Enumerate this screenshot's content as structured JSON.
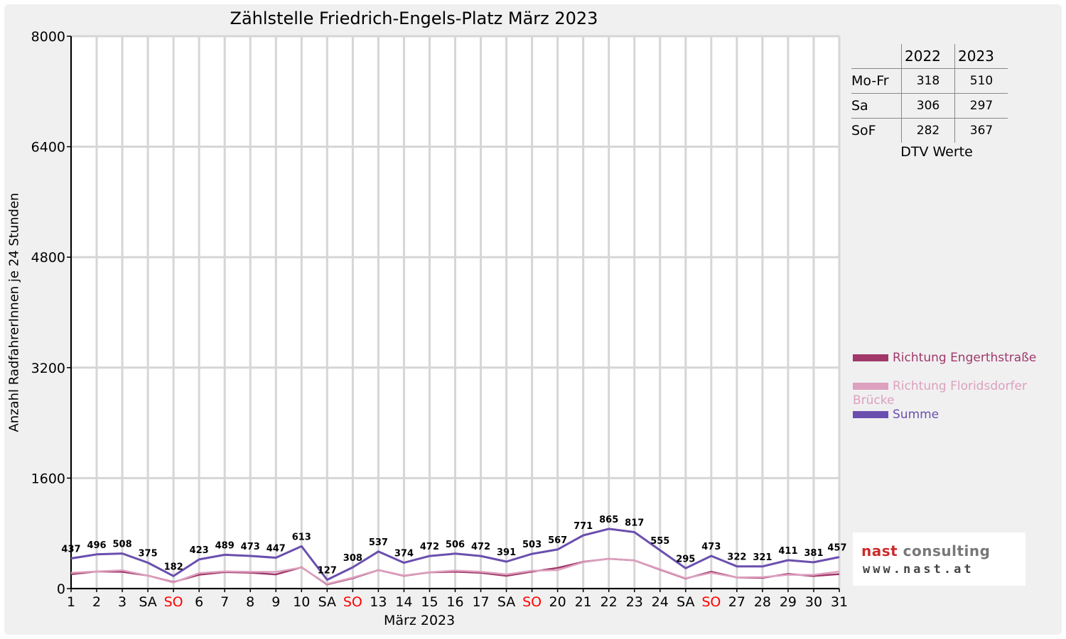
{
  "chart_data": {
    "type": "line",
    "title": "Zählstelle Friedrich-Engels-Platz März 2023",
    "xlabel": "März 2023",
    "ylabel": "Anzahl RadfahrerInnen je 24 Stunden",
    "ylim": [
      0,
      8000
    ],
    "yticks": [
      "0",
      "1600",
      "3200",
      "4800",
      "6400",
      "8000"
    ],
    "grid": true,
    "legend_position": "right",
    "x": [
      "1",
      "2",
      "3",
      "SA",
      "SO",
      "6",
      "7",
      "8",
      "9",
      "10",
      "SA",
      "SO",
      "13",
      "14",
      "15",
      "16",
      "17",
      "SA",
      "SO",
      "20",
      "21",
      "22",
      "23",
      "24",
      "SA",
      "SO",
      "27",
      "28",
      "29",
      "30",
      "31"
    ],
    "weekend_label_colors": {
      "SA": "#000000",
      "SO": "#ff0000"
    },
    "series": [
      {
        "name": "Richtung Engerthstraße",
        "color": "#a0386a",
        "values": [
          208,
          248,
          243,
          188,
          95,
          200,
          240,
          230,
          205,
          308,
          60,
          150,
          268,
          185,
          235,
          245,
          228,
          185,
          245,
          300,
          388,
          432,
          408,
          275,
          145,
          245,
          160,
          155,
          212,
          182,
          210
        ]
      },
      {
        "name": "Richtung Floridsdorfer Brücke",
        "color": "#dda0be",
        "values": [
          229,
          248,
          265,
          187,
          87,
          223,
          249,
          243,
          242,
          305,
          67,
          158,
          269,
          189,
          237,
          261,
          244,
          206,
          258,
          267,
          383,
          433,
          409,
          280,
          150,
          228,
          162,
          166,
          199,
          199,
          247
        ]
      },
      {
        "name": "Summe",
        "color": "#6a4fae",
        "values": [
          437,
          496,
          508,
          375,
          182,
          423,
          489,
          473,
          447,
          613,
          127,
          308,
          537,
          374,
          472,
          506,
          472,
          391,
          503,
          567,
          771,
          865,
          817,
          555,
          295,
          473,
          322,
          321,
          411,
          381,
          457
        ]
      }
    ],
    "data_labels": [
      "437",
      "496",
      "508",
      "375",
      "182",
      "423",
      "489",
      "473",
      "447",
      "613",
      "127",
      "308",
      "537",
      "374",
      "472",
      "506",
      "472",
      "391",
      "503",
      "567",
      "771",
      "865",
      "817",
      "555",
      "295",
      "473",
      "322",
      "321",
      "411",
      "381",
      "457"
    ]
  },
  "dtv_table": {
    "headers": [
      "2022",
      "2023"
    ],
    "rows": [
      {
        "label": "Mo-Fr",
        "v2022": "318",
        "v2023": "510"
      },
      {
        "label": "Sa",
        "v2022": "306",
        "v2023": "297"
      },
      {
        "label": "SoF",
        "v2022": "282",
        "v2023": "367"
      }
    ],
    "caption": "DTV Werte"
  },
  "logo": {
    "line1_a": "nast",
    "line1_b": " consulting",
    "line2": "www.nast.at"
  }
}
